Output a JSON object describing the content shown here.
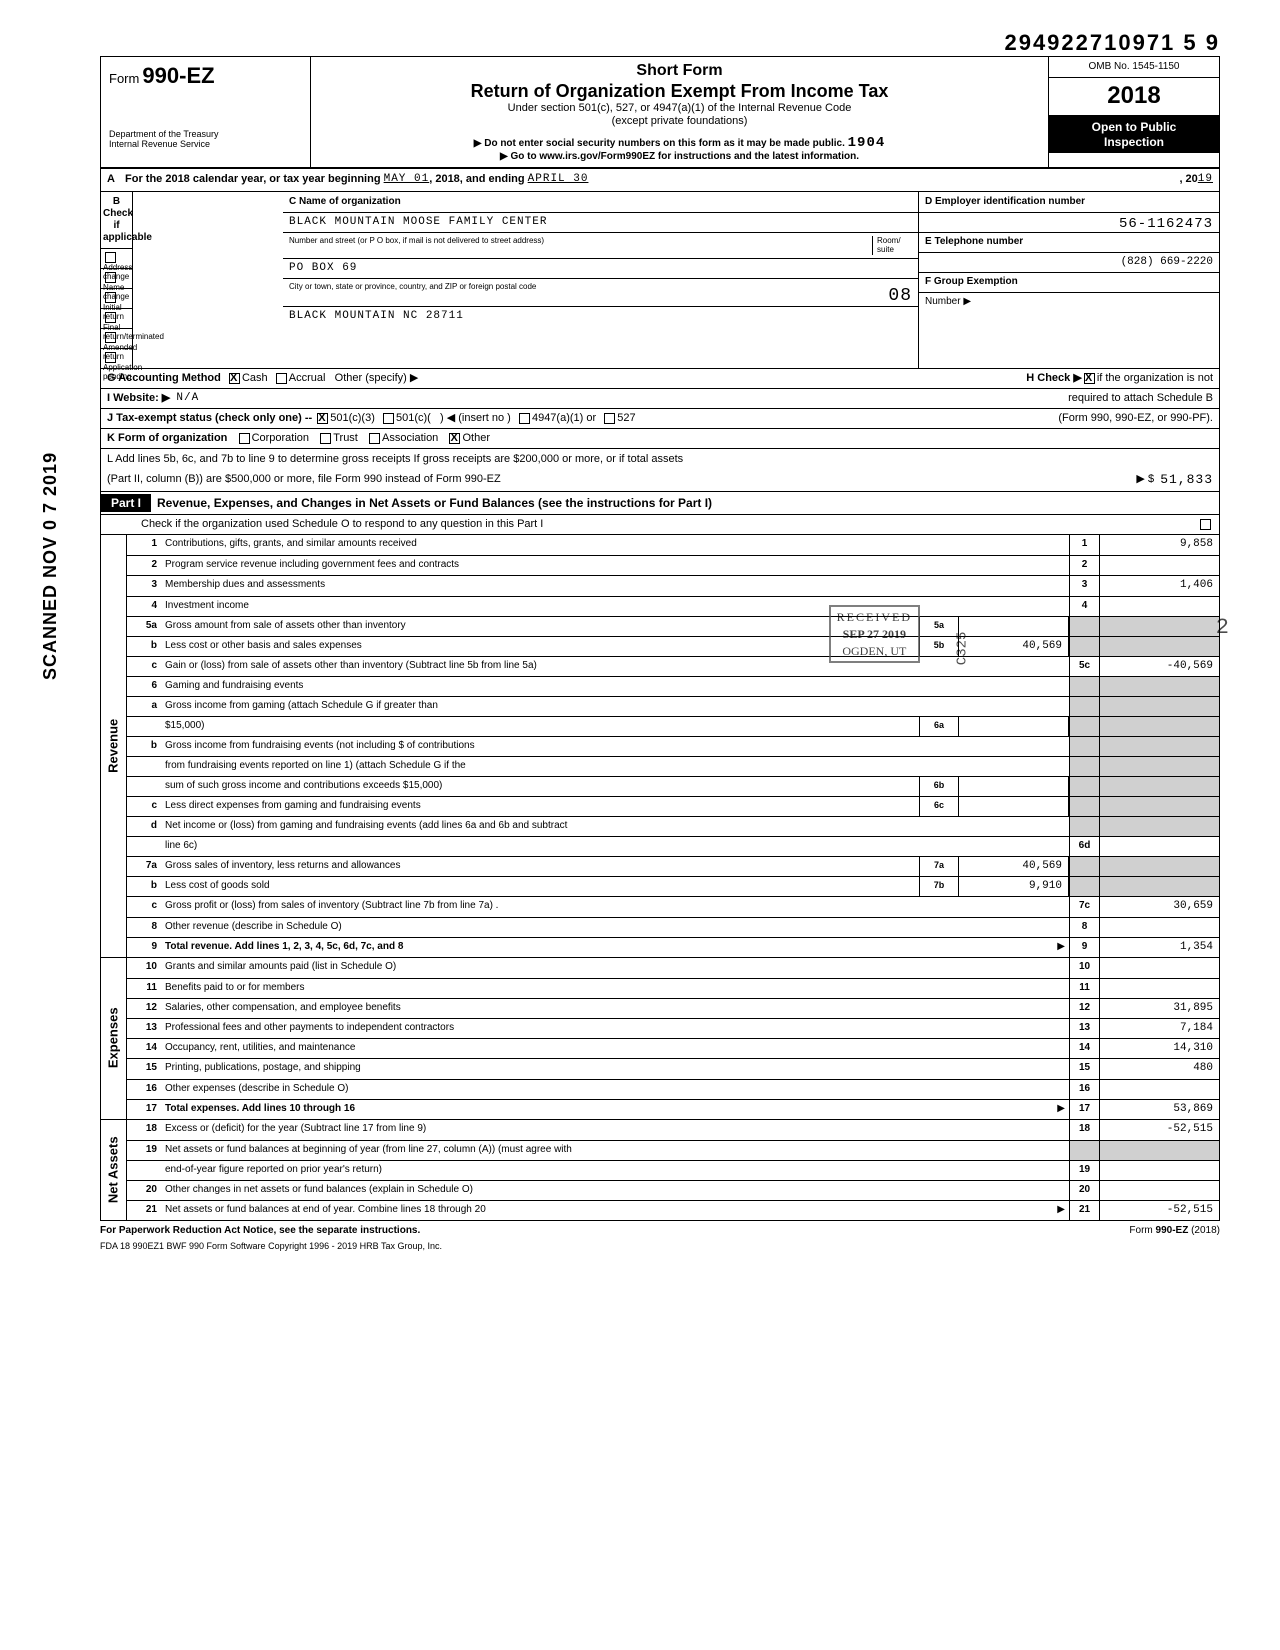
{
  "doc_number": "294922710971 5  9",
  "omb": "OMB No. 1545-1150",
  "tax_year": "2018",
  "form": {
    "prefix": "Form",
    "number": "990-EZ"
  },
  "dept": "Department of the Treasury\nInternal Revenue Service",
  "header": {
    "short": "Short Form",
    "title": "Return of Organization Exempt From Income Tax",
    "sub": "Under section 501(c), 527, or 4947(a)(1) of the Internal Revenue Code",
    "sub2": "(except private foundations)",
    "note1": "▶ Do not enter social security numbers on this form as it may be made public.",
    "note2": "▶ Go to www.irs.gov/Form990EZ for instructions and the latest information.",
    "open": "Open to Public\nInspection",
    "handwrite": "1904"
  },
  "rowA": {
    "label": "A",
    "text1": "For the 2018 calendar year, or tax year beginning",
    "begin": "MAY  01",
    "mid": ", 2018, and ending",
    "end": "APRIL 30",
    "yr": ", 20",
    "yr_v": "19"
  },
  "B": {
    "header": "B  Check if applicable",
    "items": [
      "Address change",
      "Name change",
      "Initial return",
      "Final return/terminated",
      "Amended return",
      "Application pending"
    ]
  },
  "C": {
    "header": "C  Name of organization",
    "name": "BLACK MOUNTAIN MOOSE FAMILY CENTER",
    "street_lbl": "Number and street (or P O  box, if mail is not delivered to street address)",
    "room_lbl": "Room/\nsuite",
    "street": "PO  BOX  69",
    "city_lbl": "City or town, state or province, country, and ZIP or foreign postal code",
    "city": "BLACK  MOUNTAIN  NC  28711",
    "stamp_08": "08"
  },
  "D": {
    "header": "D  Employer identification number",
    "ein": "56-1162473",
    "E_lbl": "E  Telephone number",
    "E_val": "(828)  669-2220",
    "F_lbl": "F  Group Exemption",
    "F_sub": "Number  ▶"
  },
  "G": {
    "lbl": "G  Accounting Method",
    "cash": "Cash",
    "accrual": "Accrual",
    "other": "Other (specify) ▶"
  },
  "H": {
    "text": "H  Check ▶",
    "rest": "if the organization is not",
    "rest2": "required to attach Schedule B",
    "rest3": "(Form 990, 990-EZ, or 990-PF)."
  },
  "I": {
    "lbl": "I   Website: ▶",
    "val": "N/A"
  },
  "J": {
    "lbl": "J   Tax-exempt status (check only one) --",
    "a": "501(c)(3)",
    "b": "501(c)(",
    "b2": ")  ◀ (insert no )",
    "c": "4947(a)(1) or",
    "d": "527"
  },
  "K": {
    "lbl": "K  Form of organization",
    "a": "Corporation",
    "b": "Trust",
    "c": "Association",
    "d": "Other"
  },
  "L": {
    "text": "L  Add lines 5b, 6c, and 7b to line 9 to determine gross receipts  If gross receipts are $200,000 or more, or if total assets",
    "text2": "(Part II, column (B)) are $500,000 or more, file Form 990 instead of Form 990-EZ",
    "arrow": "▶   $",
    "val": "51,833"
  },
  "part1": {
    "label": "Part I",
    "title": "Revenue, Expenses, and Changes in Net Assets or Fund Balances (see the instructions for Part I)",
    "check": "Check if the organization used Schedule O to respond to any question in this Part I"
  },
  "received": {
    "l1": "RECEIVED",
    "l2": "SEP 27 2019",
    "l3": "OGDEN, UT"
  },
  "c325": "C325",
  "revenue": [
    {
      "n": "1",
      "d": "Contributions, gifts, grants, and similar amounts received",
      "eb": "1",
      "ev": "9,858"
    },
    {
      "n": "2",
      "d": "Program service revenue including government fees and contracts",
      "eb": "2",
      "ev": ""
    },
    {
      "n": "3",
      "d": "Membership dues and assessments",
      "eb": "3",
      "ev": "1,406"
    },
    {
      "n": "4",
      "d": "Investment income",
      "eb": "4",
      "ev": ""
    },
    {
      "n": "5a",
      "d": "Gross amount from sale of assets other than inventory",
      "mb": "5a",
      "mv": "",
      "shade": true
    },
    {
      "n": "b",
      "d": "Less  cost or other basis and sales expenses",
      "mb": "5b",
      "mv": "40,569",
      "shade": true
    },
    {
      "n": "c",
      "d": "Gain or (loss) from sale of assets other than inventory (Subtract line 5b from line 5a)",
      "eb": "5c",
      "ev": "-40,569"
    },
    {
      "n": "6",
      "d": "Gaming and fundraising events",
      "shade": true,
      "noend": true
    },
    {
      "n": "a",
      "d": "Gross income from gaming (attach Schedule G if greater than",
      "shade": true,
      "noend": true
    },
    {
      "n": "",
      "d": "$15,000)",
      "mb": "6a",
      "mv": "",
      "shade": true
    },
    {
      "n": "b",
      "d": "Gross income from fundraising events (not including   $                              of contributions",
      "shade": true,
      "noend": true
    },
    {
      "n": "",
      "d": "from fundraising events reported on line 1) (attach Schedule G if the",
      "shade": true,
      "noend": true
    },
    {
      "n": "",
      "d": "sum of such gross income and contributions exceeds $15,000)",
      "mb": "6b",
      "mv": "",
      "shade": true
    },
    {
      "n": "c",
      "d": "Less  direct expenses from gaming and fundraising events",
      "mb": "6c",
      "mv": "",
      "shade": true
    },
    {
      "n": "d",
      "d": "Net income or (loss) from gaming and fundraising events (add lines 6a and 6b and subtract",
      "shade": false,
      "noend": true
    },
    {
      "n": "",
      "d": "line 6c)",
      "eb": "6d",
      "ev": ""
    },
    {
      "n": "7a",
      "d": "Gross sales of inventory, less returns and allowances",
      "mb": "7a",
      "mv": "40,569",
      "shade": true
    },
    {
      "n": "b",
      "d": "Less  cost of goods sold",
      "mb": "7b",
      "mv": "9,910",
      "shade": true
    },
    {
      "n": "c",
      "d": "Gross profit or (loss) from sales of inventory (Subtract line 7b from line 7a)   .",
      "eb": "7c",
      "ev": "30,659"
    },
    {
      "n": "8",
      "d": "Other revenue (describe in Schedule O)",
      "eb": "8",
      "ev": ""
    },
    {
      "n": "9",
      "d": "Total revenue. Add lines 1, 2, 3, 4, 5c, 6d, 7c, and 8",
      "arrow": "▶",
      "eb": "9",
      "ev": "1,354",
      "bold": true
    }
  ],
  "expenses": [
    {
      "n": "10",
      "d": "Grants and similar amounts paid (list in Schedule O)",
      "eb": "10",
      "ev": ""
    },
    {
      "n": "11",
      "d": "Benefits paid to or for members",
      "eb": "11",
      "ev": ""
    },
    {
      "n": "12",
      "d": "Salaries, other compensation, and employee benefits",
      "eb": "12",
      "ev": "31,895"
    },
    {
      "n": "13",
      "d": "Professional fees and other payments to independent contractors",
      "eb": "13",
      "ev": "7,184"
    },
    {
      "n": "14",
      "d": "Occupancy, rent, utilities, and maintenance",
      "eb": "14",
      "ev": "14,310"
    },
    {
      "n": "15",
      "d": "Printing, publications, postage, and shipping",
      "eb": "15",
      "ev": "480"
    },
    {
      "n": "16",
      "d": "Other expenses (describe in Schedule O)",
      "eb": "16",
      "ev": ""
    },
    {
      "n": "17",
      "d": "Total expenses. Add lines 10 through 16",
      "arrow": "▶",
      "eb": "17",
      "ev": "53,869",
      "bold": true
    }
  ],
  "netassets": [
    {
      "n": "18",
      "d": "Excess or (deficit) for the year (Subtract line 17 from line 9)",
      "eb": "18",
      "ev": "-52,515"
    },
    {
      "n": "19",
      "d": "Net assets or fund balances at beginning of year (from line 27, column (A)) (must agree with",
      "noend": true
    },
    {
      "n": "",
      "d": "end-of-year figure reported on prior year's return)",
      "eb": "19",
      "ev": ""
    },
    {
      "n": "20",
      "d": "Other changes in net assets or fund balances (explain in Schedule O)",
      "eb": "20",
      "ev": ""
    },
    {
      "n": "21",
      "d": "Net assets or fund balances at end of year. Combine lines 18 through 20",
      "arrow": "▶",
      "eb": "21",
      "ev": "-52,515"
    }
  ],
  "sides": {
    "rev": "Revenue",
    "exp": "Expenses",
    "na": "Net Assets"
  },
  "footer": {
    "left": "For Paperwork Reduction Act Notice, see the separate instructions.",
    "right_a": "Form ",
    "right_b": "990-EZ",
    "right_c": " (2018)",
    "line2": "FDA      18   990EZ1       BWF 990       Form Software Copyright 1996 - 2019 HRB Tax Group, Inc."
  },
  "scanned": "SCANNED NOV 0 7 2019",
  "handwritten_2": "2"
}
